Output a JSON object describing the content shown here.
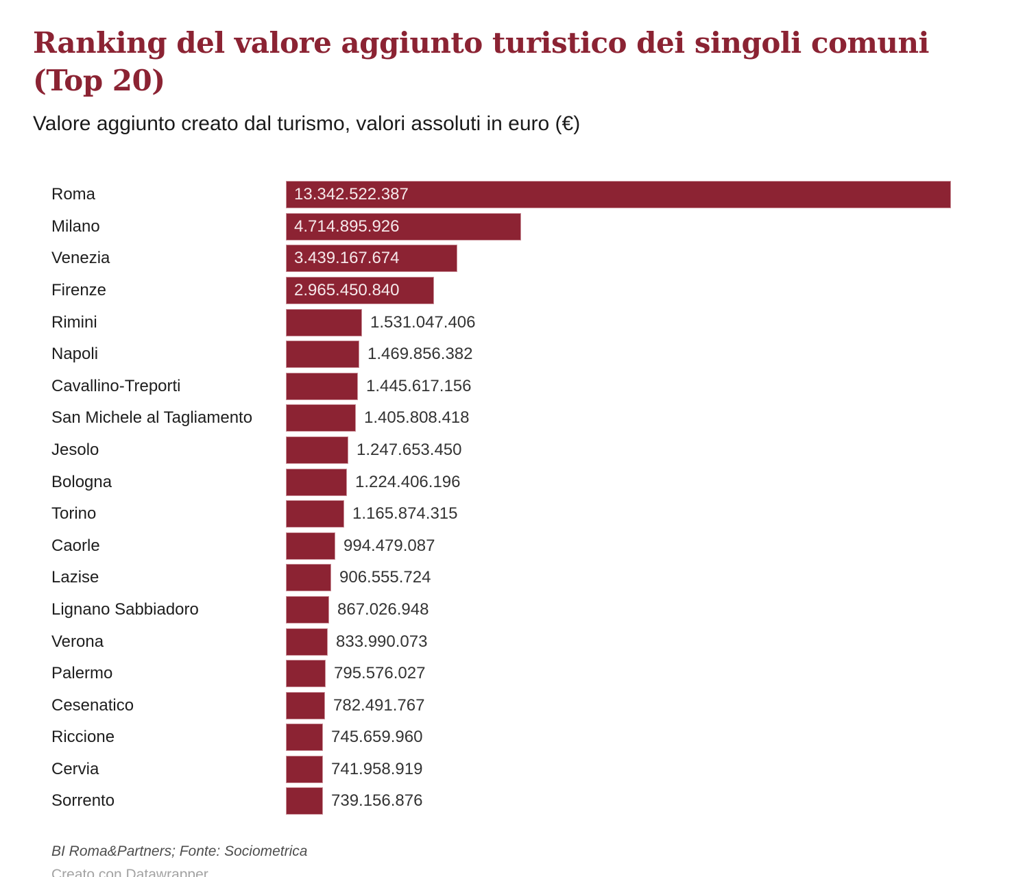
{
  "header": {
    "title": "Ranking del valore aggiunto turistico dei singoli comuni (Top 20)",
    "subtitle": "Valore aggiunto creato dal turismo, valori assoluti in euro (€)"
  },
  "footer": {
    "byline": "BI Roma&Partners; Fonte: Sociometrica",
    "credit": "Creato con Datawrapper"
  },
  "colors": {
    "bar": "#8c2333",
    "title": "#8b2333",
    "value_inside": "#f6e8ea",
    "value_outside": "#333333",
    "category_label": "#1d1d1d",
    "byline": "#4d4d4d",
    "credit": "#a3a3a3",
    "background": "#ffffff"
  },
  "chart_data": {
    "type": "bar",
    "orientation": "horizontal",
    "title": "Ranking del valore aggiunto turistico dei singoli comuni (Top 20)",
    "subtitle": "Valore aggiunto creato dal turismo, valori assoluti in euro (€)",
    "xlabel": "",
    "ylabel": "",
    "xlim": [
      0,
      13342522387
    ],
    "grid": false,
    "legend": false,
    "categories": [
      "Roma",
      "Milano",
      "Venezia",
      "Firenze",
      "Rimini",
      "Napoli",
      "Cavallino-Treporti",
      "San Michele al Tagliamento",
      "Jesolo",
      "Bologna",
      "Torino",
      "Caorle",
      "Lazise",
      "Lignano Sabbiadoro",
      "Verona",
      "Palermo",
      "Cesenatico",
      "Riccione",
      "Cervia",
      "Sorrento"
    ],
    "values": [
      13342522387,
      4714895926,
      3439167674,
      2965450840,
      1531047406,
      1469856382,
      1445617156,
      1405808418,
      1247653450,
      1224406196,
      1165874315,
      994479087,
      906555724,
      867026948,
      833990073,
      795576027,
      782491767,
      745659960,
      741958919,
      739156876
    ],
    "value_labels": [
      "13.342.522.387",
      "4.714.895.926",
      "3.439.167.674",
      "2.965.450.840",
      "1.531.047.406",
      "1.469.856.382",
      "1.445.617.156",
      "1.405.808.418",
      "1.247.653.450",
      "1.224.406.196",
      "1.165.874.315",
      "994.479.087",
      "906.555.724",
      "867.026.948",
      "833.990.073",
      "795.576.027",
      "782.491.767",
      "745.659.960",
      "741.958.919",
      "739.156.876"
    ]
  }
}
